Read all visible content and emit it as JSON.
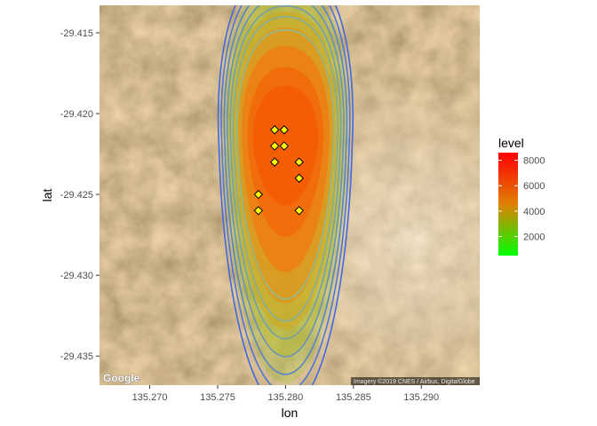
{
  "chart_data": {
    "type": "contour-map",
    "xlabel": "lon",
    "ylabel": "lat",
    "xlim": [
      135.2663,
      135.2943
    ],
    "ylim": [
      -29.4368,
      -29.4133
    ],
    "x_ticks": [
      135.27,
      135.275,
      135.28,
      135.285,
      135.29
    ],
    "x_tick_labels": [
      "135.270",
      "135.275",
      "135.280",
      "135.285",
      "135.290"
    ],
    "y_ticks": [
      -29.415,
      -29.42,
      -29.425,
      -29.43,
      -29.435
    ],
    "y_tick_labels": [
      "-29.415",
      "-29.420",
      "-29.425",
      "-29.430",
      "-29.435"
    ],
    "legend": {
      "title": "level",
      "min": 500,
      "max": 8600,
      "breaks": [
        2000,
        4000,
        6000,
        8000
      ],
      "break_labels": [
        "2000",
        "4000",
        "6000",
        "8000"
      ],
      "colors": [
        "#00ff00",
        "#e08000",
        "#ff0000"
      ],
      "placement": "right"
    },
    "density_center": {
      "lon": 135.28,
      "lat": -29.4235
    },
    "points": [
      {
        "lon": 135.2792,
        "lat": -29.421
      },
      {
        "lon": 135.2799,
        "lat": -29.421
      },
      {
        "lon": 135.2792,
        "lat": -29.422
      },
      {
        "lon": 135.2799,
        "lat": -29.422
      },
      {
        "lon": 135.2792,
        "lat": -29.423
      },
      {
        "lon": 135.281,
        "lat": -29.423
      },
      {
        "lon": 135.281,
        "lat": -29.424
      },
      {
        "lon": 135.278,
        "lat": -29.425
      },
      {
        "lon": 135.278,
        "lat": -29.426
      },
      {
        "lon": 135.281,
        "lat": -29.426
      }
    ],
    "point_color": "#ffff00",
    "contour_color_low": "#4169e1",
    "contour_color_high": "#8fbc8f"
  },
  "basemap": {
    "provider_logo": "Google",
    "attribution": "Imagery ©2019 CNES / Airbus, DigitalGlobe"
  }
}
